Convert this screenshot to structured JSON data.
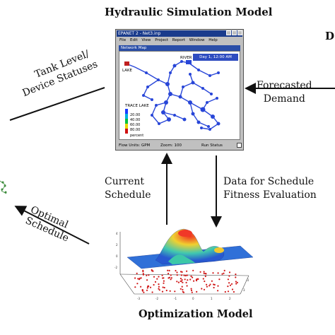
{
  "titles": {
    "simulation": "Hydraulic Simulation Model",
    "optimization": "Optimization Model",
    "edge_fragment": "D"
  },
  "labels": {
    "forecasted": [
      "Forecasted",
      "Demand"
    ],
    "tank": [
      "Tank Level/",
      "Device Statuses"
    ],
    "optimal": [
      "Optimal",
      "Schedule"
    ],
    "current": [
      "Current",
      "Schedule"
    ],
    "data_fitness": [
      "Data for Schedule",
      "Fitness Evaluation"
    ]
  },
  "epanet": {
    "window_title": "EPANET 2 - Net3.inp",
    "menu": [
      "File",
      "Edit",
      "View",
      "Project",
      "Report",
      "Window",
      "Help"
    ],
    "map_title": "Network Map",
    "day_label": "Day 1, 12:00 AM",
    "node_labels": {
      "river": "RIVER",
      "lake": "LAKE"
    },
    "legend": {
      "title": "TRACE LAKE",
      "values": [
        "20.00",
        "40.00",
        "60.00",
        "80.00"
      ],
      "unit": "percent",
      "colors": [
        "#1a3cff",
        "#00b0e0",
        "#00c040",
        "#e8d800",
        "#d01010"
      ]
    },
    "status": {
      "flow_units": "Flow Units: GPM",
      "zoom": "Zoom: 100",
      "run_status": "Run Status"
    }
  },
  "colors": {
    "network": "#2846d8",
    "arrow": "#111111",
    "scatter": "#d01818"
  }
}
